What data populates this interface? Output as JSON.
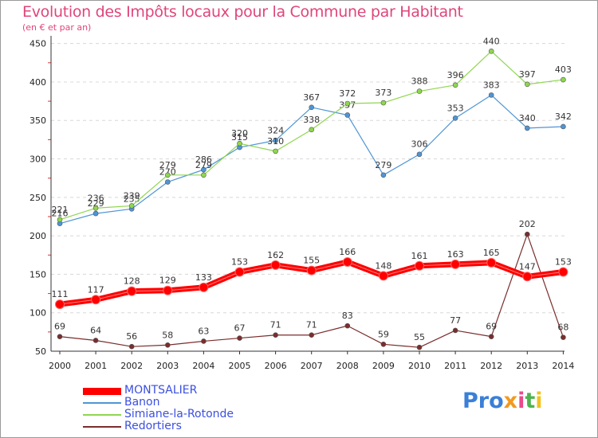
{
  "chart_data": {
    "type": "line",
    "title": "Evolution des Impôts locaux pour la Commune par Habitant",
    "subtitle": "(en € et par an)",
    "x": [
      "2000",
      "2001",
      "2002",
      "2003",
      "2004",
      "2005",
      "2006",
      "2007",
      "2008",
      "2009",
      "2010",
      "2011",
      "2012",
      "2013",
      "2014"
    ],
    "ylim": [
      50,
      460
    ],
    "yticks": [
      50,
      100,
      150,
      200,
      250,
      300,
      350,
      400,
      450
    ],
    "grid": "horizontal",
    "legend_placement": "bottom-left",
    "series": [
      {
        "name": "MONTSALIER",
        "color": "#ff0000",
        "values": [
          111,
          117,
          128,
          129,
          133,
          153,
          162,
          155,
          166,
          148,
          161,
          163,
          165,
          147,
          153
        ]
      },
      {
        "name": "Banon",
        "color": "#4f95d5",
        "values": [
          216,
          229,
          235,
          270,
          286,
          315,
          324,
          367,
          357,
          279,
          306,
          353,
          383,
          340,
          342
        ]
      },
      {
        "name": "Simiane-la-Rotonde",
        "color": "#8fd650",
        "values": [
          221,
          236,
          239,
          279,
          279,
          320,
          310,
          338,
          372,
          373,
          388,
          396,
          440,
          397,
          403
        ]
      },
      {
        "name": "Redortiers",
        "color": "#7a2d2d",
        "values": [
          69,
          64,
          56,
          58,
          63,
          67,
          71,
          71,
          83,
          59,
          55,
          77,
          69,
          202,
          68
        ]
      }
    ]
  },
  "brand": {
    "p1": "Pro",
    "p2": "x",
    "p3": "i",
    "p4": "t",
    "p5": "i"
  }
}
